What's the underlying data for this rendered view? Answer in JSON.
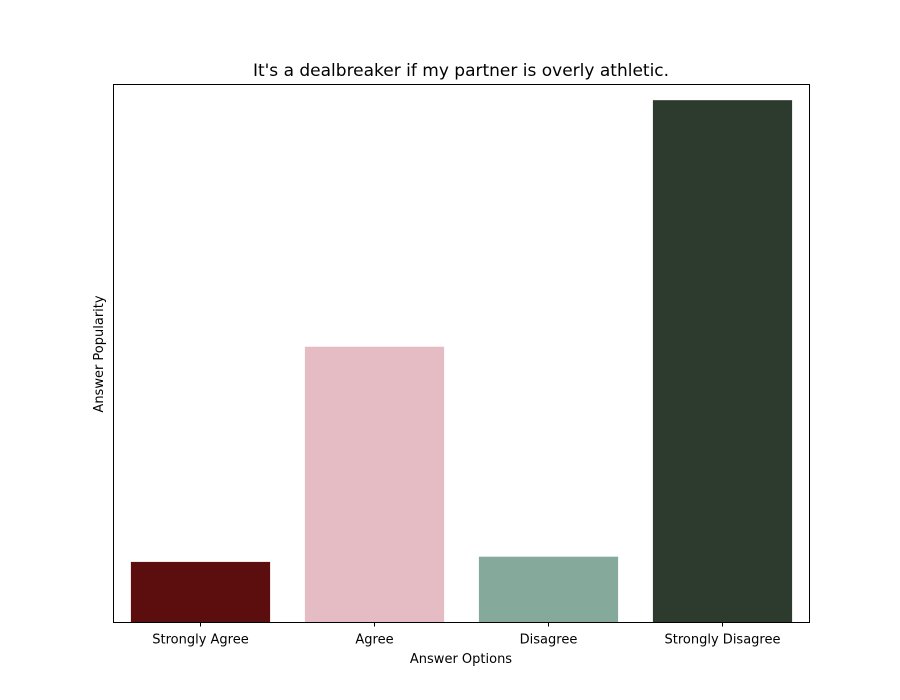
{
  "chart_data": {
    "type": "bar",
    "title": "It's a dealbreaker if my partner is overly athletic.",
    "xlabel": "Answer Options",
    "ylabel": "Answer Popularity",
    "categories": [
      "Strongly Agree",
      "Agree",
      "Disagree",
      "Strongly Disagree"
    ],
    "values": [
      5.8,
      26.4,
      6.3,
      50
    ],
    "colors": [
      "#5c0e0e",
      "#e6bcc4",
      "#85a99b",
      "#2d3b2f"
    ],
    "ylim": [
      0,
      51.5
    ],
    "y_ticks_visible": false,
    "grid": false
  }
}
